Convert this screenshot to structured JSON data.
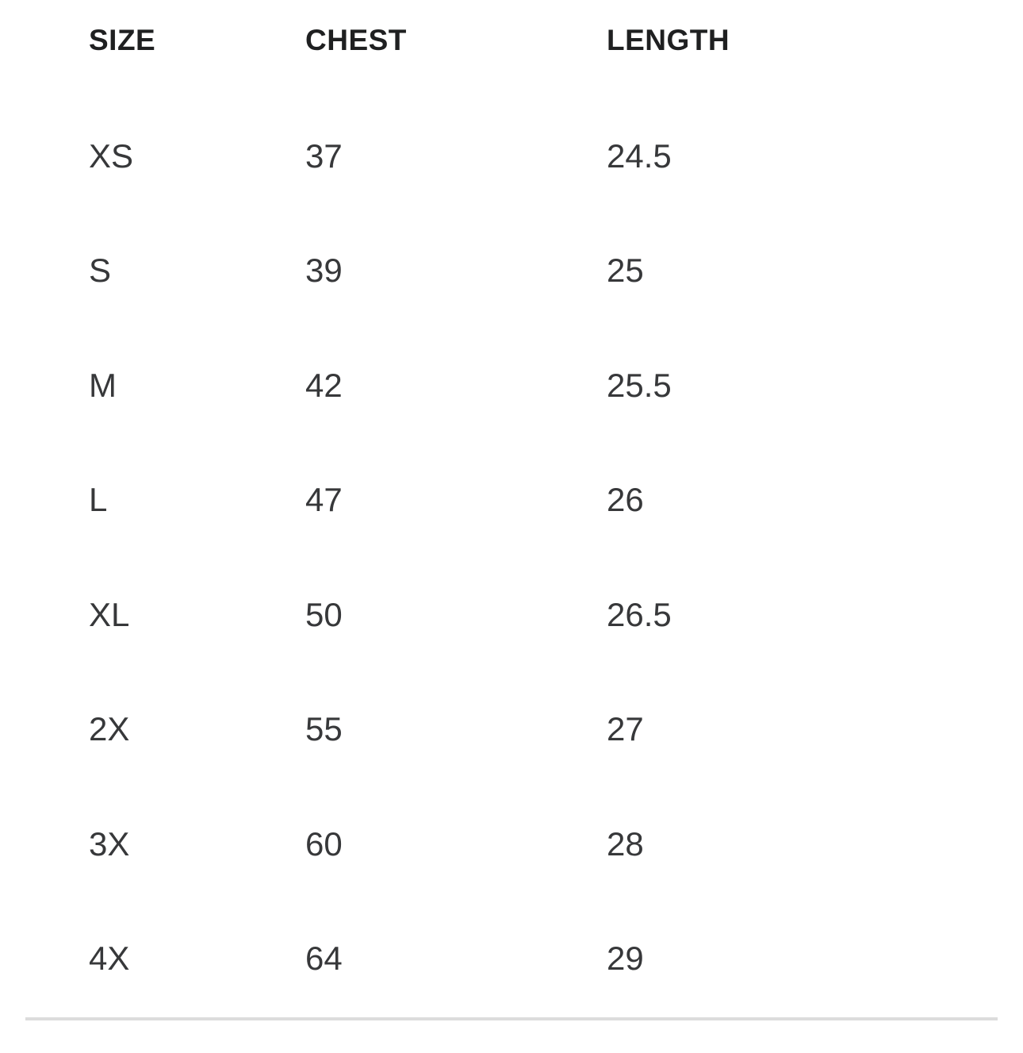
{
  "table": {
    "columns": [
      "SIZE",
      "CHEST",
      "LENGTH"
    ],
    "rows": [
      {
        "size": "XS",
        "chest": "37",
        "length": "24.5"
      },
      {
        "size": "S",
        "chest": "39",
        "length": "25"
      },
      {
        "size": "M",
        "chest": "42",
        "length": "25.5"
      },
      {
        "size": "L",
        "chest": "47",
        "length": "26"
      },
      {
        "size": "XL",
        "chest": "50",
        "length": "26.5"
      },
      {
        "size": "2X",
        "chest": "55",
        "length": "27"
      },
      {
        "size": "3X",
        "chest": "60",
        "length": "28"
      },
      {
        "size": "4X",
        "chest": "64",
        "length": "29"
      }
    ]
  },
  "colors": {
    "background": "#ffffff",
    "header_text": "#1f2021",
    "row_text": "#37383a",
    "divider": "#dcdcdc"
  }
}
